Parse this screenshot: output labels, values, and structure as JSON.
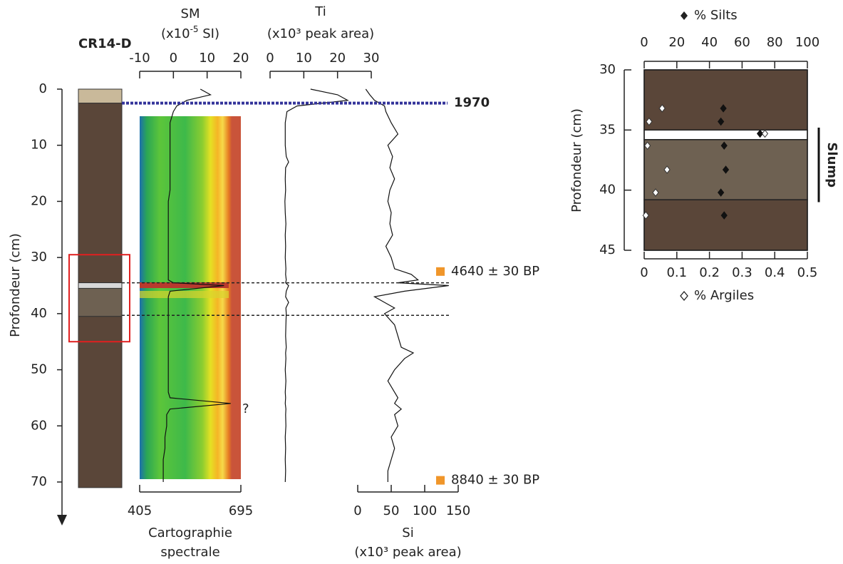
{
  "chart_data": [
    {
      "type": "line",
      "title": "CR14-D",
      "ylabel": "Profondeur (cm)",
      "ylim": [
        0,
        70
      ],
      "yticks": [
        0,
        10,
        20,
        30,
        40,
        50,
        60,
        70
      ],
      "y": [
        0,
        1,
        2,
        3,
        4,
        6,
        8,
        10,
        12,
        13,
        14,
        16,
        18,
        20,
        22,
        24,
        26,
        28,
        30,
        32,
        33,
        34,
        34.5,
        35,
        36,
        37,
        38,
        39,
        40,
        42,
        44,
        46,
        47,
        48,
        50,
        52,
        54,
        55,
        56,
        57,
        58,
        60,
        62,
        64,
        66,
        68,
        70
      ],
      "series": [
        {
          "name": "SM",
          "unit": [
            "(x10",
            "-5",
            " SI)"
          ],
          "color": "#111111",
          "xlim": [
            -10,
            20
          ],
          "xticks": [
            -10,
            0,
            10,
            20
          ],
          "values": [
            8,
            11,
            4,
            1,
            0,
            -1,
            -1,
            -1,
            -1,
            -1,
            -1,
            -1,
            -1,
            -1.5,
            -1.5,
            -1.5,
            -1.5,
            -1.5,
            -1.5,
            -1.5,
            -1.5,
            -1.5,
            0,
            15,
            -1,
            -1.5,
            -1.5,
            -1.5,
            -1.5,
            -1.5,
            -1.5,
            -1.5,
            -1.5,
            -1.5,
            -1.5,
            -1.5,
            -1.5,
            -1,
            17,
            -1,
            -2,
            -2,
            -2.5,
            -2.5,
            -3,
            -3,
            -3
          ]
        },
        {
          "name": "Ti",
          "unit": "(x10³ peak area)",
          "color": "#111111",
          "xlim": [
            0,
            30
          ],
          "xticks": [
            0,
            10,
            20,
            30
          ],
          "values": [
            12,
            20,
            23,
            8,
            5,
            4.5,
            4.5,
            4.5,
            4.8,
            5.5,
            4.6,
            4.5,
            4.6,
            4.4,
            4.5,
            4.7,
            4.5,
            4.6,
            4.5,
            4.7,
            4.6,
            4.8,
            4.6,
            5.5,
            4.8,
            4.6,
            5.5,
            4.7,
            4.8,
            4.7,
            4.6,
            4.8,
            4.6,
            4.7,
            4.5,
            4.7,
            4.5,
            4.6,
            4.5,
            4.7,
            4.6,
            4.7,
            4.5,
            4.6,
            4.5,
            4.6,
            4.5
          ]
        },
        {
          "name": "Si",
          "unit": "(x10³ peak area)",
          "color": "#111111",
          "xlim": [
            0,
            150
          ],
          "xticks": [
            0,
            50,
            100,
            150
          ],
          "values": [
            12,
            18,
            25,
            40,
            42,
            50,
            60,
            45,
            52,
            50,
            48,
            55,
            48,
            45,
            50,
            48,
            52,
            42,
            50,
            55,
            80,
            90,
            60,
            136,
            70,
            25,
            40,
            55,
            40,
            55,
            60,
            65,
            83,
            70,
            55,
            45,
            55,
            60,
            55,
            65,
            55,
            60,
            50,
            55,
            50,
            45,
            45
          ]
        }
      ],
      "core_units": [
        {
          "top": 0,
          "bottom": 2.5,
          "color": "#c9b99a"
        },
        {
          "top": 2.5,
          "bottom": 34.5,
          "color": "#5a4639"
        },
        {
          "top": 34.5,
          "bottom": 35.5,
          "color": "#d9d9d9"
        },
        {
          "top": 35.5,
          "bottom": 40.5,
          "color": "#6e6152"
        },
        {
          "top": 40.5,
          "bottom": 71,
          "color": "#5a4639"
        }
      ],
      "spectral": {
        "label": [
          "Cartographie",
          "spectrale"
        ],
        "xlim": [
          405,
          695
        ],
        "xticks": [
          405,
          695
        ]
      },
      "annotations": [
        {
          "text": "1970",
          "depth": 2.5,
          "color": "#33339a"
        },
        {
          "text": "4640 ± 30 BP",
          "depth": 32.5,
          "color": "#f0962a"
        },
        {
          "text": "8840 ± 30 BP",
          "depth": 69.7,
          "color": "#f0962a"
        },
        {
          "text": "?",
          "depth": 56,
          "color": "#222222"
        }
      ],
      "boundaries": [
        34.5,
        40.3
      ],
      "highlight": [
        29.5,
        45
      ]
    },
    {
      "type": "scatter",
      "ylabel": "Profondeur (cm)",
      "ylim": [
        30,
        45
      ],
      "yticks": [
        30,
        35,
        40,
        45
      ],
      "xlim": [
        0,
        0.5
      ],
      "xticks": [
        0,
        0.1,
        0.2,
        0.3,
        0.4,
        0.5
      ],
      "x2lim": [
        0,
        100
      ],
      "x2ticks": [
        0,
        20,
        40,
        60,
        80,
        100
      ],
      "y": [
        33.2,
        34.3,
        35.3,
        36.3,
        38.3,
        40.2,
        42.1
      ],
      "series": [
        {
          "name": "% Silts",
          "axis": "x2",
          "marker": "filled",
          "values": [
            48.5,
            47,
            71,
            49,
            50,
            47,
            49
          ]
        },
        {
          "name": "% Argiles",
          "marker": "open",
          "values": [
            0.055,
            0.015,
            0.37,
            0.01,
            0.07,
            0.035,
            0.005
          ]
        }
      ],
      "layers": [
        {
          "top": 30,
          "bottom": 35,
          "color": "#5a4639"
        },
        {
          "top": 35,
          "bottom": 35.8,
          "color": "#ffffff"
        },
        {
          "top": 35.8,
          "bottom": 40.8,
          "color": "#6e6152"
        },
        {
          "top": 40.8,
          "bottom": 45,
          "color": "#5a4639"
        }
      ],
      "annotation": {
        "text": "Slump",
        "top": 34.8,
        "bottom": 41
      }
    }
  ]
}
